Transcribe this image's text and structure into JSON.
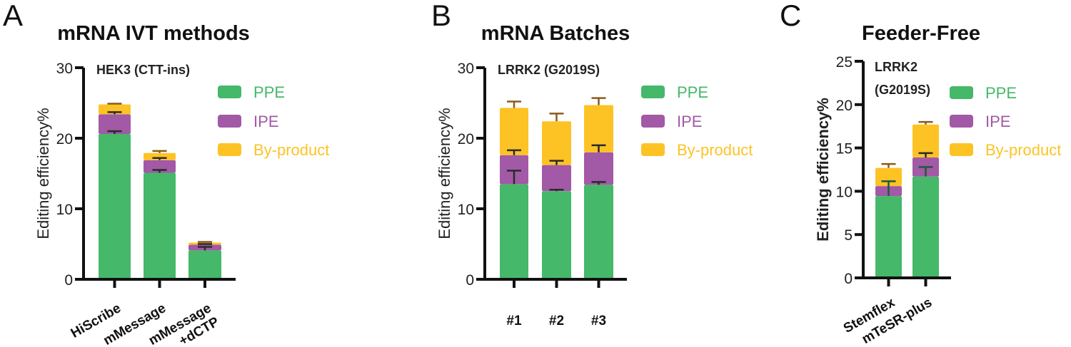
{
  "colors": {
    "PPE": "#45b86a",
    "IPE": "#a259a6",
    "By-product": "#fdc325"
  },
  "chart_data": [
    {
      "type": "bar",
      "stacked": true,
      "panel_letter": "A",
      "title": "mRNA IVT methods",
      "subtitle": "HEK3 (CTT-ins)",
      "ylabel": "Editing efficiency%",
      "xlabel": "",
      "ylim": [
        0,
        30
      ],
      "yticks": [
        "0",
        "10",
        "20",
        "30"
      ],
      "categories": [
        "HiScribe",
        "mMessage",
        "mMessage\n+dCTP"
      ],
      "legend": "right",
      "series": [
        {
          "name": "PPE",
          "values": [
            20.6,
            15.1,
            4.1
          ],
          "errors": [
            0.4,
            0.4,
            0.5
          ]
        },
        {
          "name": "IPE",
          "values": [
            2.8,
            1.8,
            0.8
          ],
          "errors": [
            0.3,
            0.3,
            0.1
          ]
        },
        {
          "name": "By-product",
          "values": [
            1.4,
            1.0,
            0.3
          ],
          "errors": [
            0.1,
            0.3,
            0.1
          ]
        }
      ]
    },
    {
      "type": "bar",
      "stacked": true,
      "panel_letter": "B",
      "title": "mRNA Batches",
      "subtitle": "LRRK2 (G2019S)",
      "ylabel": "Editing efficiency%",
      "xlabel": "",
      "ylim": [
        0,
        30
      ],
      "yticks": [
        "0",
        "10",
        "20",
        "30"
      ],
      "categories": [
        "#1",
        "#2",
        "#3"
      ],
      "legend": "right",
      "series": [
        {
          "name": "PPE",
          "values": [
            13.5,
            12.5,
            13.4
          ],
          "errors": [
            1.9,
            0.2,
            0.4
          ]
        },
        {
          "name": "IPE",
          "values": [
            4.1,
            3.7,
            4.6
          ],
          "errors": [
            0.7,
            0.6,
            1.0
          ]
        },
        {
          "name": "By-product",
          "values": [
            6.7,
            6.2,
            6.7
          ],
          "errors": [
            0.9,
            1.1,
            1.0
          ]
        }
      ]
    },
    {
      "type": "bar",
      "stacked": true,
      "panel_letter": "C",
      "title": "Feeder-Free",
      "subtitle": "LRRK2\n(G2019S)",
      "ylabel": "Editing efficiency%",
      "xlabel": "",
      "ylim": [
        0,
        25
      ],
      "yticks": [
        "0",
        "5",
        "10",
        "15",
        "20",
        "25"
      ],
      "categories": [
        "Stemflex",
        "mTeSR-plus"
      ],
      "legend": "right",
      "series": [
        {
          "name": "PPE",
          "values": [
            9.45,
            11.7
          ],
          "errors": [
            1.7,
            1.1
          ]
        },
        {
          "name": "IPE",
          "values": [
            1.15,
            2.2
          ],
          "errors": [
            0.0,
            0.5
          ]
        },
        {
          "name": "By-product",
          "values": [
            2.1,
            3.8
          ],
          "errors": [
            0.45,
            0.3
          ]
        }
      ]
    }
  ]
}
